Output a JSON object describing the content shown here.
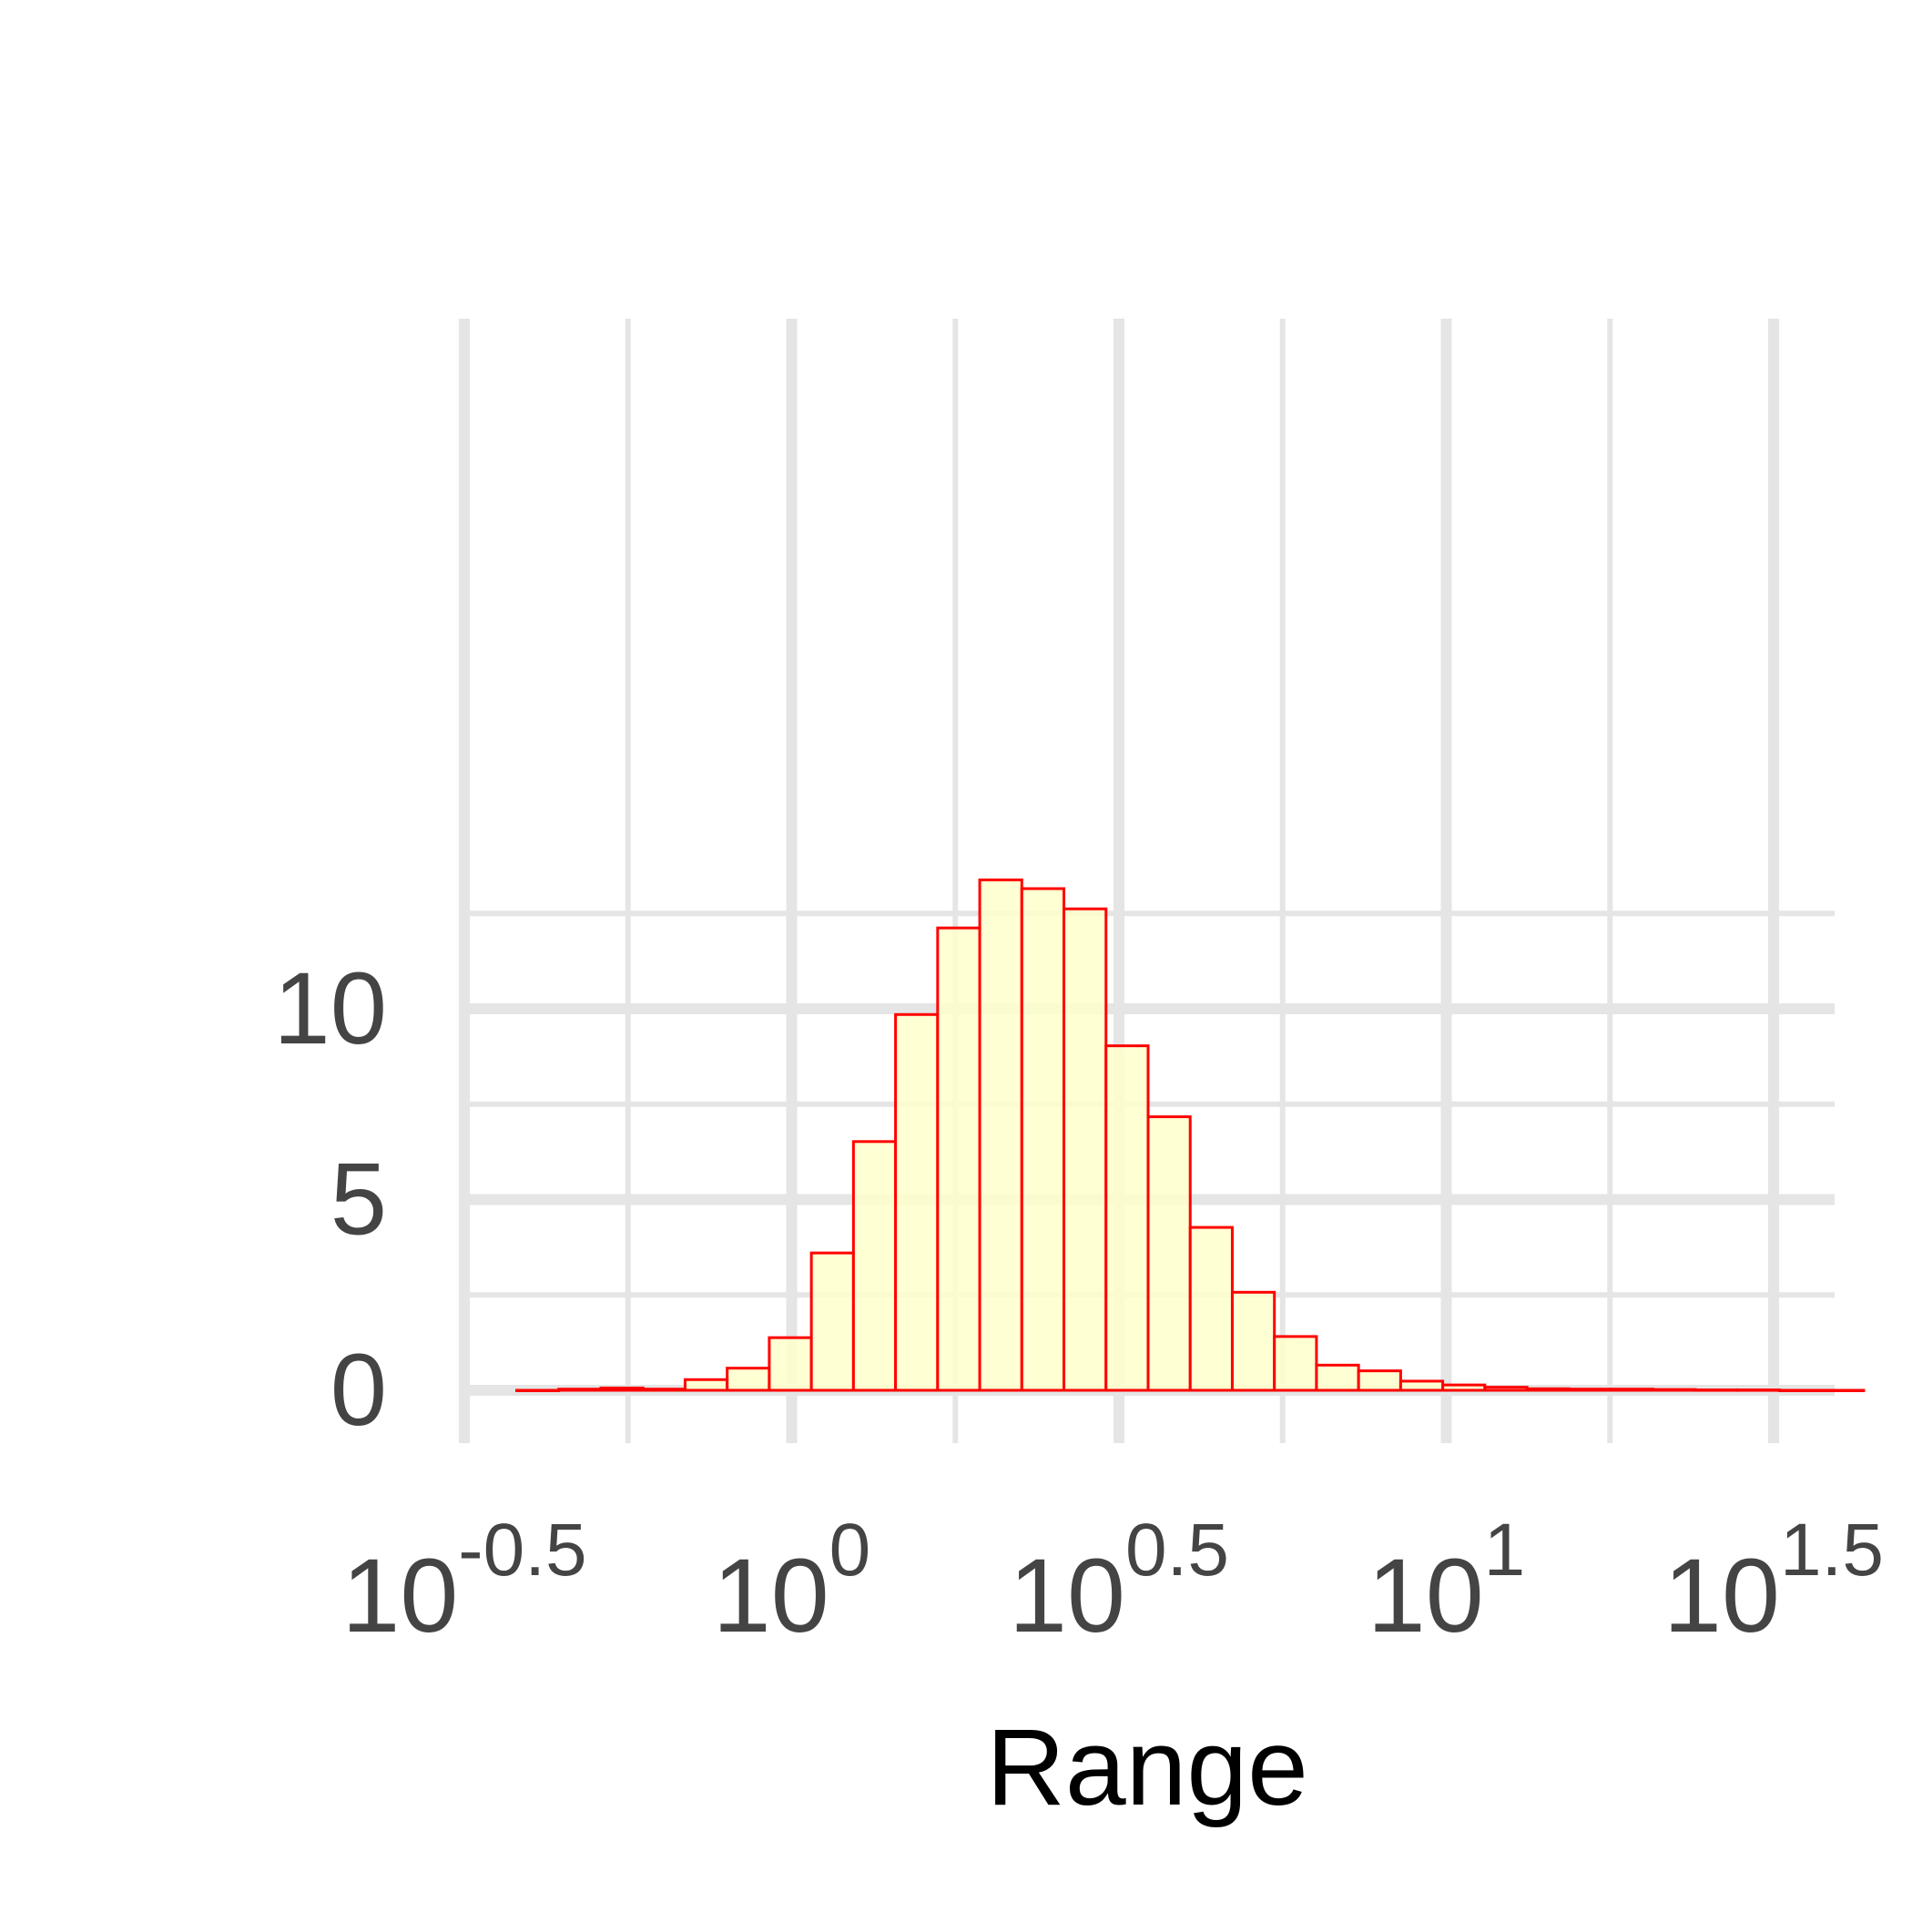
{
  "chart_data": {
    "type": "bar",
    "subtype": "histogram",
    "title": "",
    "xlabel": "Range",
    "ylabel": "",
    "x_scale": "log10",
    "xlim": [
      -0.5,
      1.5
    ],
    "ylim": [
      -0.6,
      14.2
    ],
    "x_ticks": [
      {
        "value": -0.5,
        "base": "10",
        "exponent": "-0.5"
      },
      {
        "value": 0,
        "base": "10",
        "exponent": "0"
      },
      {
        "value": 0.5,
        "base": "10",
        "exponent": "0.5"
      },
      {
        "value": 1,
        "base": "10",
        "exponent": "1"
      },
      {
        "value": 1.5,
        "base": "10",
        "exponent": "1.5"
      }
    ],
    "y_ticks": [
      0,
      5,
      10
    ],
    "y_minor_ticks": [
      2.5,
      7.5,
      12.5
    ],
    "x_minor_ticks": [
      -0.25,
      0.25,
      0.75,
      1.25
    ],
    "bins": {
      "start": -0.42,
      "width": 0.0643,
      "counts": [
        0.0,
        0.03,
        0.06,
        0.03,
        0.28,
        0.58,
        1.38,
        3.6,
        6.52,
        9.85,
        12.12,
        13.38,
        13.15,
        12.62,
        9.03,
        7.17,
        4.27,
        2.57,
        1.41,
        0.66,
        0.51,
        0.24,
        0.14,
        0.08,
        0.04,
        0.03,
        0.03,
        0.02,
        0.01,
        0.01,
        0.0,
        0.0
      ]
    },
    "grid": true,
    "colors": {
      "bar_fill": "#FFFFCC",
      "bar_stroke": "#FF0000",
      "grid": "#E5E5E5",
      "tick_text": "#444444",
      "axis_title": "#000000"
    }
  }
}
